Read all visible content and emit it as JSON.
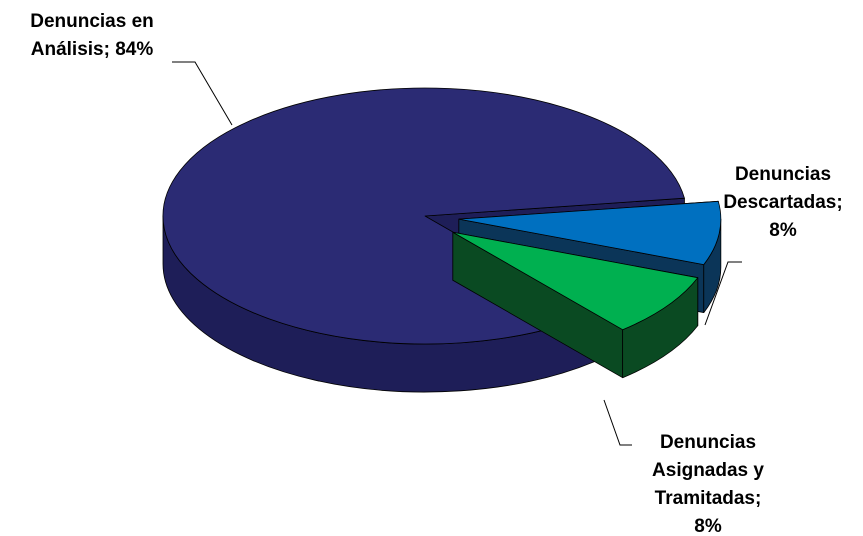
{
  "chart_data": {
    "type": "pie",
    "labels": [
      [
        "Denuncias en",
        "Análisis; 84%"
      ],
      [
        "Denuncias",
        "Descartadas;",
        "8%"
      ],
      [
        "Denuncias",
        "Asignadas y",
        "Tramitadas;",
        "8%"
      ]
    ],
    "values": [
      84,
      8,
      8
    ],
    "colors": [
      "#2b2b74",
      "#0070c0",
      "#00b050"
    ],
    "side_colors": [
      "#1e1e58",
      "#0b3558",
      "#0a4a22"
    ]
  }
}
